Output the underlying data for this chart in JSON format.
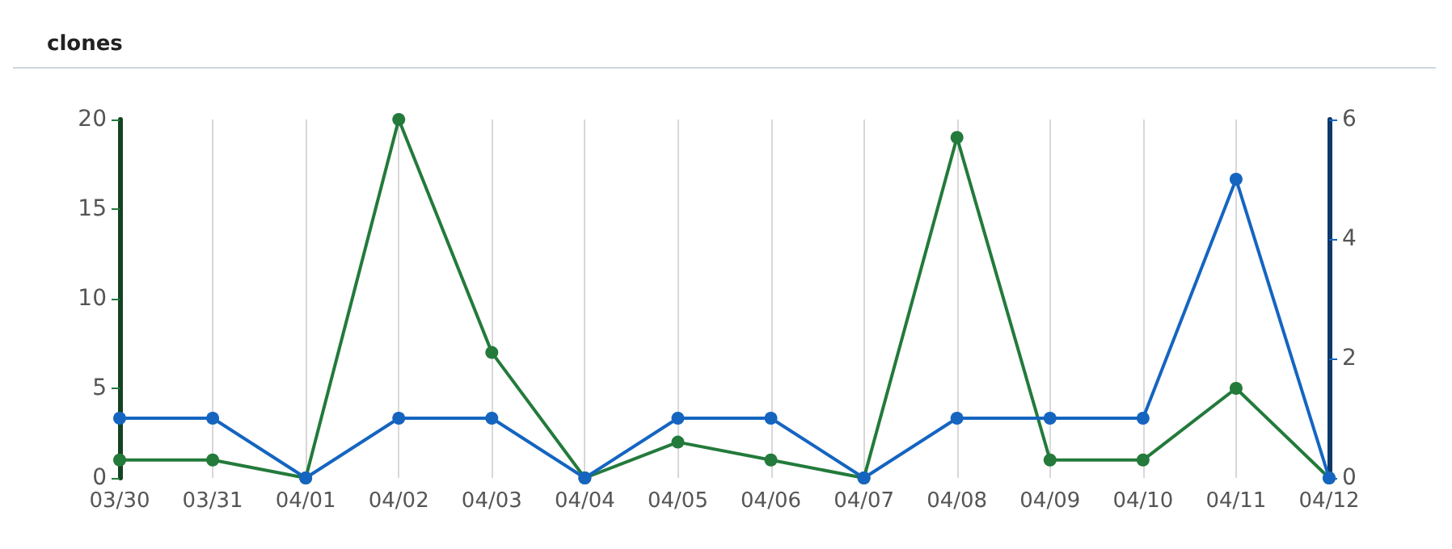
{
  "chart_data": {
    "type": "line",
    "title": "clones",
    "categories": [
      "03/30",
      "03/31",
      "04/01",
      "04/02",
      "04/03",
      "04/04",
      "04/05",
      "04/06",
      "04/07",
      "04/08",
      "04/09",
      "04/10",
      "04/11",
      "04/12"
    ],
    "series": [
      {
        "color": "#237a3b",
        "values": [
          1,
          1,
          0,
          20,
          7,
          0,
          2,
          1,
          0,
          19,
          1,
          1,
          5,
          0
        ]
      },
      {
        "color": "#1565c0",
        "axis": "y2",
        "values": [
          1,
          1,
          0,
          1,
          1,
          0,
          1,
          1,
          0,
          1,
          1,
          1,
          5,
          0
        ]
      }
    ],
    "ylim": [
      0,
      20
    ],
    "yticks": [
      0,
      5,
      10,
      15,
      20
    ],
    "y2lim": [
      0,
      6
    ],
    "y2ticks": [
      0,
      2,
      4,
      6
    ],
    "grid": "x",
    "marker": "circle",
    "line_style": "solid"
  }
}
